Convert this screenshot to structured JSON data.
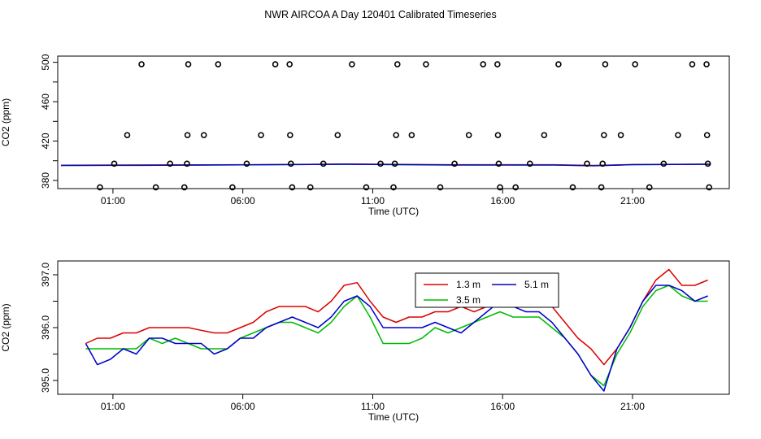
{
  "title": "NWR AIRCOA A  Day 120401  Calibrated Timeseries",
  "colors": {
    "red": "#dd0000",
    "green": "#00bb00",
    "blue": "#0000cc",
    "black": "#000000"
  },
  "chart_data": [
    {
      "type": "scatter",
      "name": "raw-calibration-plot",
      "xlabel": "Time (UTC)",
      "ylabel": "CO2 (ppm)",
      "xlim": [
        -1,
        24.6
      ],
      "ylim": [
        375,
        503
      ],
      "x_ticks": [
        {
          "value": 1,
          "label": "01:00"
        },
        {
          "value": 6,
          "label": "06:00"
        },
        {
          "value": 11,
          "label": "11:00"
        },
        {
          "value": 16,
          "label": "16:00"
        },
        {
          "value": 21,
          "label": "21:00"
        }
      ],
      "y_ticks": [
        {
          "value": 380,
          "label": "380"
        },
        {
          "value": 400,
          "label": ""
        },
        {
          "value": 420,
          "label": "420"
        },
        {
          "value": 440,
          "label": ""
        },
        {
          "value": 460,
          "label": "460"
        },
        {
          "value": 480,
          "label": ""
        },
        {
          "value": 500,
          "label": "500"
        }
      ],
      "points": [
        {
          "x": 0.5,
          "y": 373
        },
        {
          "x": 1.05,
          "y": 397
        },
        {
          "x": 1.55,
          "y": 426
        },
        {
          "x": 2.1,
          "y": 498
        },
        {
          "x": 2.65,
          "y": 373
        },
        {
          "x": 3.2,
          "y": 397
        },
        {
          "x": 3.75,
          "y": 373
        },
        {
          "x": 3.85,
          "y": 397
        },
        {
          "x": 3.87,
          "y": 426
        },
        {
          "x": 3.9,
          "y": 498
        },
        {
          "x": 4.5,
          "y": 426
        },
        {
          "x": 5.05,
          "y": 498
        },
        {
          "x": 5.6,
          "y": 373
        },
        {
          "x": 6.15,
          "y": 397
        },
        {
          "x": 6.7,
          "y": 426
        },
        {
          "x": 7.25,
          "y": 498
        },
        {
          "x": 7.8,
          "y": 498
        },
        {
          "x": 7.82,
          "y": 426
        },
        {
          "x": 7.85,
          "y": 397
        },
        {
          "x": 7.9,
          "y": 373
        },
        {
          "x": 8.6,
          "y": 373
        },
        {
          "x": 9.1,
          "y": 397
        },
        {
          "x": 9.65,
          "y": 426
        },
        {
          "x": 10.2,
          "y": 498
        },
        {
          "x": 10.75,
          "y": 373
        },
        {
          "x": 11.3,
          "y": 397
        },
        {
          "x": 11.8,
          "y": 373
        },
        {
          "x": 11.85,
          "y": 397
        },
        {
          "x": 11.9,
          "y": 426
        },
        {
          "x": 11.95,
          "y": 498
        },
        {
          "x": 12.5,
          "y": 426
        },
        {
          "x": 13.05,
          "y": 498
        },
        {
          "x": 13.6,
          "y": 373
        },
        {
          "x": 14.15,
          "y": 397
        },
        {
          "x": 14.7,
          "y": 426
        },
        {
          "x": 15.25,
          "y": 498
        },
        {
          "x": 15.8,
          "y": 498
        },
        {
          "x": 15.82,
          "y": 426
        },
        {
          "x": 15.85,
          "y": 397
        },
        {
          "x": 15.9,
          "y": 373
        },
        {
          "x": 16.5,
          "y": 373
        },
        {
          "x": 17.05,
          "y": 397
        },
        {
          "x": 17.6,
          "y": 426
        },
        {
          "x": 18.15,
          "y": 498
        },
        {
          "x": 18.7,
          "y": 373
        },
        {
          "x": 19.25,
          "y": 397
        },
        {
          "x": 19.8,
          "y": 373
        },
        {
          "x": 19.85,
          "y": 397
        },
        {
          "x": 19.9,
          "y": 426
        },
        {
          "x": 19.95,
          "y": 498
        },
        {
          "x": 20.55,
          "y": 426
        },
        {
          "x": 21.1,
          "y": 498
        },
        {
          "x": 21.65,
          "y": 373
        },
        {
          "x": 22.2,
          "y": 397
        },
        {
          "x": 22.75,
          "y": 426
        },
        {
          "x": 23.3,
          "y": 498
        },
        {
          "x": 23.85,
          "y": 498
        },
        {
          "x": 23.87,
          "y": 426
        },
        {
          "x": 23.9,
          "y": 397
        },
        {
          "x": 23.95,
          "y": 373
        }
      ],
      "baseline_series": [
        {
          "name": "1.3 m",
          "color": "#dd0000",
          "x": [
            -1,
            2,
            6,
            10,
            14,
            18,
            19.5,
            21,
            24
          ],
          "values": [
            395.5,
            395.8,
            396.0,
            396.7,
            396.0,
            396.0,
            395.3,
            396.2,
            396.6
          ]
        },
        {
          "name": "3.5 m",
          "color": "#00bb00",
          "x": [
            -1,
            2,
            6,
            10,
            14,
            18,
            19.5,
            21,
            24
          ],
          "values": [
            395.3,
            395.4,
            395.8,
            396.4,
            395.6,
            395.7,
            394.9,
            396.0,
            396.5
          ]
        },
        {
          "name": "5.1 m",
          "color": "#0000cc",
          "x": [
            -1,
            2,
            6,
            10,
            14,
            18,
            19.5,
            21,
            24
          ],
          "values": [
            395.2,
            395.3,
            395.8,
            396.5,
            395.7,
            395.6,
            394.9,
            396.0,
            396.4
          ]
        }
      ]
    },
    {
      "type": "line",
      "name": "profile-timeseries-plot",
      "xlabel": "Time (UTC)",
      "ylabel": "CO2 (ppm)",
      "xlim": [
        -1,
        24.6
      ],
      "ylim": [
        394.8,
        397.2
      ],
      "x_ticks": [
        {
          "value": 1,
          "label": "01:00"
        },
        {
          "value": 6,
          "label": "06:00"
        },
        {
          "value": 11,
          "label": "11:00"
        },
        {
          "value": 16,
          "label": "16:00"
        },
        {
          "value": 21,
          "label": "21:00"
        }
      ],
      "y_ticks": [
        {
          "value": 395.0,
          "label": "395.0"
        },
        {
          "value": 395.5,
          "label": ""
        },
        {
          "value": 396.0,
          "label": "396.0"
        },
        {
          "value": 396.5,
          "label": ""
        },
        {
          "value": 397.0,
          "label": "397.0"
        }
      ],
      "legend": {
        "position": "top-center",
        "columns": 2
      },
      "series": [
        {
          "name": "1.3 m",
          "color": "#dd0000",
          "x": [
            -0.05,
            0.4,
            0.9,
            1.4,
            1.9,
            2.4,
            2.9,
            3.4,
            3.9,
            4.4,
            4.9,
            5.4,
            5.9,
            6.4,
            6.9,
            7.4,
            7.9,
            8.4,
            8.9,
            9.4,
            9.9,
            10.4,
            10.9,
            11.4,
            11.9,
            12.4,
            12.9,
            13.4,
            13.9,
            14.4,
            14.9,
            15.4,
            15.9,
            16.4,
            16.9,
            17.4,
            17.9,
            18.4,
            18.9,
            19.4,
            19.9,
            20.4,
            20.9,
            21.4,
            21.9,
            22.4,
            22.9,
            23.4,
            23.9
          ],
          "values": [
            395.7,
            395.8,
            395.8,
            395.9,
            395.9,
            396.0,
            396.0,
            396.0,
            396.0,
            395.95,
            395.9,
            395.9,
            396.0,
            396.1,
            396.3,
            396.4,
            396.4,
            396.4,
            396.3,
            396.5,
            396.8,
            396.85,
            396.5,
            396.2,
            396.1,
            396.2,
            396.2,
            396.3,
            396.3,
            396.4,
            396.3,
            396.4,
            396.6,
            396.5,
            396.4,
            396.5,
            396.4,
            396.1,
            395.8,
            395.6,
            395.3,
            395.6,
            396.0,
            396.5,
            396.9,
            397.1,
            396.8,
            396.8,
            396.9
          ]
        },
        {
          "name": "3.5 m",
          "color": "#00bb00",
          "x": [
            -0.05,
            0.4,
            0.9,
            1.4,
            1.9,
            2.4,
            2.9,
            3.4,
            3.9,
            4.4,
            4.9,
            5.4,
            5.9,
            6.4,
            6.9,
            7.4,
            7.9,
            8.4,
            8.9,
            9.4,
            9.9,
            10.4,
            10.9,
            11.4,
            11.9,
            12.4,
            12.9,
            13.4,
            13.9,
            14.4,
            14.9,
            15.4,
            15.9,
            16.4,
            16.9,
            17.4,
            17.9,
            18.4,
            18.9,
            19.4,
            19.9,
            20.4,
            20.9,
            21.4,
            21.9,
            22.4,
            22.9,
            23.4,
            23.9
          ],
          "values": [
            395.6,
            395.6,
            395.6,
            395.6,
            395.6,
            395.8,
            395.7,
            395.8,
            395.7,
            395.6,
            395.6,
            395.6,
            395.8,
            395.9,
            396.0,
            396.1,
            396.1,
            396.0,
            395.9,
            396.1,
            396.4,
            396.6,
            396.2,
            395.7,
            395.7,
            395.7,
            395.8,
            396.0,
            395.9,
            396.0,
            396.1,
            396.2,
            396.3,
            396.2,
            396.2,
            396.2,
            396.0,
            395.8,
            395.5,
            395.1,
            394.9,
            395.5,
            395.9,
            396.4,
            396.7,
            396.8,
            396.6,
            396.5,
            396.5
          ]
        },
        {
          "name": "5.1 m",
          "color": "#0000cc",
          "x": [
            -0.05,
            0.4,
            0.9,
            1.4,
            1.9,
            2.4,
            2.9,
            3.4,
            3.9,
            4.4,
            4.9,
            5.4,
            5.9,
            6.4,
            6.9,
            7.4,
            7.9,
            8.4,
            8.9,
            9.4,
            9.9,
            10.4,
            10.9,
            11.4,
            11.9,
            12.4,
            12.9,
            13.4,
            13.9,
            14.4,
            14.9,
            15.4,
            15.9,
            16.4,
            16.9,
            17.4,
            17.9,
            18.4,
            18.9,
            19.4,
            19.9,
            20.4,
            20.9,
            21.4,
            21.9,
            22.4,
            22.9,
            23.4,
            23.9
          ],
          "values": [
            395.7,
            395.3,
            395.4,
            395.6,
            395.5,
            395.8,
            395.8,
            395.7,
            395.7,
            395.7,
            395.5,
            395.6,
            395.8,
            395.8,
            396.0,
            396.1,
            396.2,
            396.1,
            396.0,
            396.2,
            396.5,
            396.6,
            396.4,
            396.0,
            396.0,
            396.0,
            396.0,
            396.1,
            396.0,
            395.9,
            396.1,
            396.3,
            396.5,
            396.4,
            396.3,
            396.3,
            396.1,
            395.8,
            395.5,
            395.1,
            394.8,
            395.6,
            396.0,
            396.5,
            396.8,
            396.8,
            396.7,
            396.5,
            396.6
          ]
        }
      ]
    }
  ]
}
